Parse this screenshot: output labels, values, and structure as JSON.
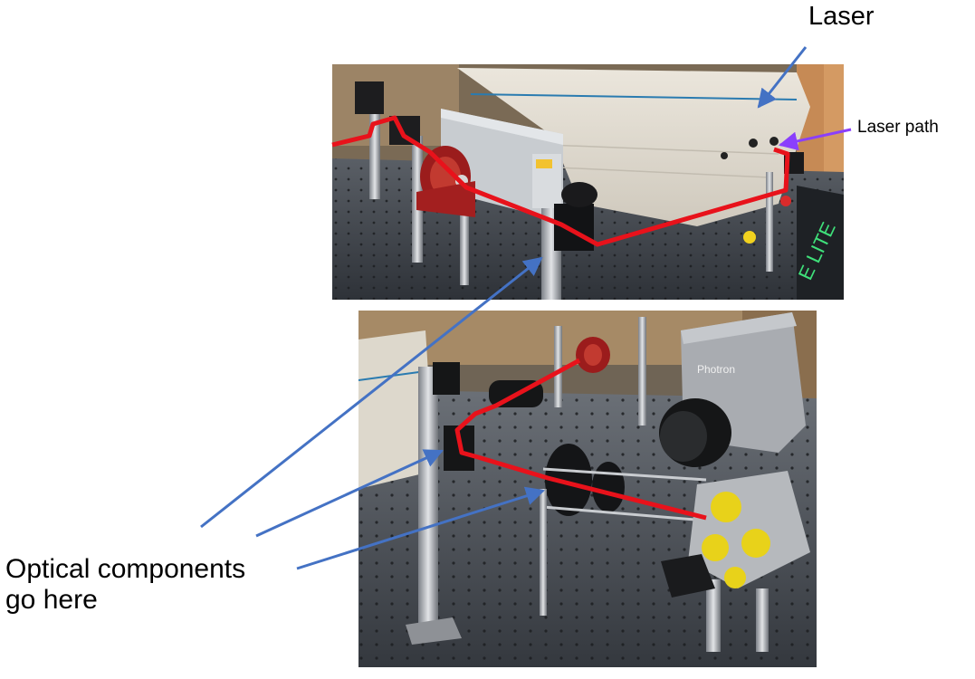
{
  "annotations": {
    "laser_label": "Laser",
    "laser_path_label": "Laser path",
    "optical_line1": "Optical components",
    "optical_line2": "go here"
  },
  "photos": {
    "top": "Optical table with laser unit, red lens mount and post-mounted mirrors; red line traces the laser path",
    "bottom": "Optical table with Photron camera, rail-mounted optics and yellow-capped cube chamber; red line traces the laser path"
  },
  "colors": {
    "laser_beam": "#e8121b",
    "pointer_arrow": "#4472c4",
    "laser_path_arrow": "#8a3ffc",
    "text": "#000000"
  }
}
